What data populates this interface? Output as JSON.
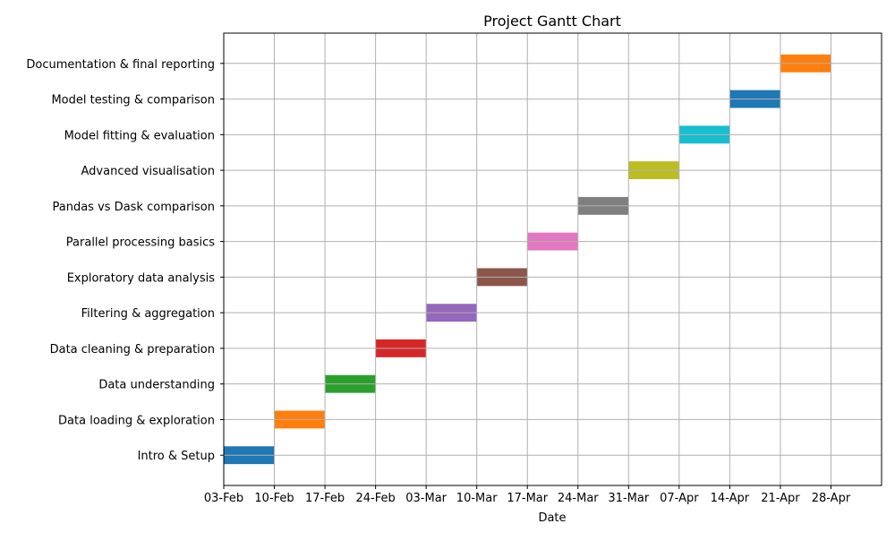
{
  "chart_data": {
    "type": "gantt",
    "title": "Project Gantt Chart",
    "xlabel": "Date",
    "ylabel": "",
    "x_ticks": [
      "03-Feb",
      "10-Feb",
      "17-Feb",
      "24-Feb",
      "03-Mar",
      "10-Mar",
      "17-Mar",
      "24-Mar",
      "31-Mar",
      "07-Apr",
      "14-Apr",
      "21-Apr",
      "28-Apr"
    ],
    "x_range": [
      "03-Feb",
      "05-May"
    ],
    "grid": true,
    "tasks": [
      {
        "name": "Intro & Setup",
        "start": "03-Feb",
        "end": "10-Feb",
        "color": "#1f77b4"
      },
      {
        "name": "Data loading & exploration",
        "start": "10-Feb",
        "end": "17-Feb",
        "color": "#ff7f0e"
      },
      {
        "name": "Data understanding",
        "start": "17-Feb",
        "end": "24-Feb",
        "color": "#2ca02c"
      },
      {
        "name": "Data cleaning & preparation",
        "start": "24-Feb",
        "end": "03-Mar",
        "color": "#d62728"
      },
      {
        "name": "Filtering & aggregation",
        "start": "03-Mar",
        "end": "10-Mar",
        "color": "#9467bd"
      },
      {
        "name": "Exploratory data analysis",
        "start": "10-Mar",
        "end": "17-Mar",
        "color": "#8c564b"
      },
      {
        "name": "Parallel processing basics",
        "start": "17-Mar",
        "end": "24-Mar",
        "color": "#e377c2"
      },
      {
        "name": "Pandas vs Dask comparison",
        "start": "24-Mar",
        "end": "31-Mar",
        "color": "#7f7f7f"
      },
      {
        "name": "Advanced visualisation",
        "start": "31-Mar",
        "end": "07-Apr",
        "color": "#bcbd22"
      },
      {
        "name": "Model fitting & evaluation",
        "start": "07-Apr",
        "end": "14-Apr",
        "color": "#17becf"
      },
      {
        "name": "Model testing & comparison",
        "start": "14-Apr",
        "end": "21-Apr",
        "color": "#1f77b4"
      },
      {
        "name": "Documentation & final reporting",
        "start": "21-Apr",
        "end": "28-Apr",
        "color": "#ff7f0e"
      }
    ]
  }
}
